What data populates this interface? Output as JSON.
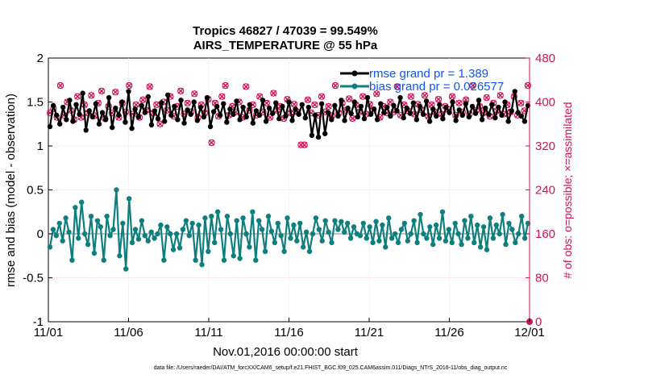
{
  "chart_data": {
    "type": "line",
    "title_line1": "Tropics 46827 / 47039 = 99.549%",
    "title_line2": "AIRS_TEMPERATURE @ 55 hPa",
    "xlabel": "Nov.01,2016 00:00:00 start",
    "ylabel_left": "rmse and bias (model - observation)",
    "ylabel_right": "# of obs: o=possible; ×=assimilated",
    "x_ticks": [
      "11/01",
      "11/06",
      "11/11",
      "11/16",
      "11/21",
      "11/26",
      "12/01"
    ],
    "x_range_days": [
      0,
      30
    ],
    "ylim_left": [
      -1,
      2
    ],
    "y_ticks_left": [
      "-1",
      "-0.5",
      "0",
      "0.5",
      "1",
      "1.5",
      "2"
    ],
    "ylim_right": [
      0,
      480
    ],
    "y_ticks_right": [
      "0",
      "80",
      "160",
      "240",
      "320",
      "400",
      "480"
    ],
    "grid": true,
    "legend_position": "top-right",
    "footnote": "data file: /Users/raeder/DAI/ATM_forcXX/CAM6_setup/f.e21.FHIST_BGC.f09_025.CAM6assim.011/Diags_NTrS_2016-11/obs_diag_output.nc",
    "colors": {
      "rmse": "#000000",
      "bias": "#0e7f7f",
      "obs": "#d01357",
      "legend_text": "#1155ee",
      "zero_line": "#aaaaaa"
    },
    "series": [
      {
        "name": "rmse grand pr = 1.389",
        "axis": "left",
        "values": [
          1.22,
          1.46,
          1.35,
          1.25,
          1.44,
          1.3,
          1.52,
          1.28,
          1.47,
          1.36,
          1.6,
          1.18,
          1.4,
          1.33,
          1.48,
          1.25,
          1.38,
          1.3,
          1.55,
          1.21,
          1.43,
          1.35,
          1.5,
          1.27,
          1.62,
          1.2,
          1.42,
          1.33,
          1.46,
          1.38,
          1.56,
          1.24,
          1.4,
          1.31,
          1.49,
          1.28,
          1.58,
          1.35,
          1.45,
          1.3,
          1.52,
          1.26,
          1.41,
          1.36,
          1.5,
          1.29,
          1.44,
          1.33,
          1.55,
          1.22,
          1.39,
          1.45,
          1.35,
          1.48,
          1.27,
          1.42,
          1.36,
          1.51,
          1.3,
          1.44,
          1.33,
          1.47,
          1.26,
          1.4,
          1.35,
          1.52,
          1.28,
          1.43,
          1.37,
          1.49,
          1.31,
          1.45,
          1.34,
          1.5,
          1.29,
          1.42,
          1.36,
          1.47,
          1.32,
          1.44,
          1.12,
          1.35,
          1.1,
          1.48,
          1.14,
          1.38,
          1.3,
          1.46,
          1.34,
          1.52,
          1.29,
          1.43,
          1.37,
          1.5,
          1.33,
          1.45,
          1.31,
          1.55,
          1.36,
          1.42,
          1.3,
          1.48,
          1.38,
          1.44,
          1.34,
          1.46,
          1.4,
          1.55,
          1.32,
          1.43,
          1.37,
          1.49,
          1.3,
          1.45,
          1.36,
          1.51,
          1.28,
          1.42,
          1.34,
          1.47,
          1.31,
          1.44,
          1.38,
          1.5,
          1.29,
          1.41,
          1.35,
          1.48,
          1.33,
          1.45,
          1.37,
          1.52,
          1.3,
          1.43,
          1.36,
          1.47,
          1.32,
          1.44,
          1.35,
          1.5,
          1.28,
          1.4,
          1.62,
          1.38,
          1.34,
          1.28,
          1.46
        ]
      },
      {
        "name": "bias grand pr = 0.026577",
        "axis": "left",
        "values": [
          -0.15,
          0.05,
          -0.02,
          0.12,
          -0.08,
          0.18,
          0.02,
          -0.3,
          0.3,
          -0.05,
          0.36,
          0.0,
          -0.12,
          0.2,
          -0.22,
          0.15,
          0.08,
          -0.3,
          0.2,
          -0.02,
          0.05,
          0.5,
          -0.25,
          0.12,
          -0.4,
          0.4,
          -0.1,
          0.05,
          -0.06,
          0.15,
          -0.02,
          -0.08,
          0.02,
          -0.05,
          0.0,
          0.1,
          -0.3,
          0.08,
          0.0,
          -0.18,
          0.0,
          -0.16,
          0.05,
          0.15,
          -0.02,
          0.12,
          -0.3,
          0.1,
          -0.35,
          0.18,
          -0.2,
          0.2,
          -0.1,
          0.25,
          0.05,
          -0.3,
          0.2,
          0.0,
          -0.25,
          0.15,
          -0.28,
          0.18,
          0.0,
          -0.15,
          0.25,
          -0.3,
          0.15,
          0.05,
          -0.2,
          0.2,
          0.03,
          -0.1,
          0.12,
          -0.02,
          -0.2,
          0.18,
          -0.05,
          0.1,
          -0.08,
          0.12,
          -0.15,
          0.02,
          -0.2,
          0.0,
          0.18,
          0.05,
          -0.08,
          0.15,
          0.02,
          -0.1,
          0.15,
          0.05,
          0.14,
          0.02,
          0.12,
          -0.05,
          0.08,
          0.0,
          -0.02,
          0.12,
          -0.05,
          0.08,
          -0.1,
          0.14,
          -0.08,
          0.1,
          -0.15,
          0.18,
          -0.05,
          0.0,
          -0.1,
          0.05,
          0.12,
          -0.08,
          0.0,
          0.15,
          -0.1,
          0.22,
          0.0,
          -0.05,
          0.08,
          -0.12,
          0.1,
          -0.05,
          0.25,
          -0.08,
          0.05,
          -0.1,
          0.12,
          0.0,
          -0.12,
          0.15,
          -0.05,
          0.2,
          -0.1,
          0.1,
          -0.15,
          0.08,
          -0.18,
          0.18,
          -0.05,
          0.1,
          0.0,
          0.22,
          -0.12,
          0.12,
          0.05,
          -0.1,
          0.0,
          0.2,
          -0.05,
          0.12
        ]
      },
      {
        "name": "# of obs possible",
        "axis": "right",
        "values": [
          380,
          388,
          372,
          430,
          376,
          400,
          385,
          368,
          410,
          372,
          395,
          380,
          412,
          375,
          398,
          420,
          370,
          392,
          380,
          418,
          372,
          398,
          382,
          430,
          378,
          395,
          372,
          404,
          385,
          428,
          380,
          395,
          360,
          400,
          385,
          410,
          374,
          392,
          420,
          378,
          398,
          382,
          415,
          372,
          395,
          380,
          405,
          326,
          398,
          374,
          410,
          430,
          376,
          392,
          382,
          400,
          372,
          428,
          385,
          395,
          376,
          410,
          382,
          398,
          372,
          416,
          385,
          392,
          370,
          405,
          380,
          396,
          382,
          322,
          322,
          404,
          380,
          395,
          376,
          410,
          382,
          392,
          375,
          430,
          380,
          398,
          385,
          406,
          370,
          395,
          382,
          410,
          378,
          396,
          385,
          415,
          372,
          392,
          380,
          400,
          382,
          428,
          376,
          395,
          384,
          410,
          378,
          396,
          386,
          412,
          374,
          395,
          382,
          405,
          378,
          392,
          386,
          410,
          376,
          398,
          382,
          404,
          378,
          430,
          385,
          392,
          380,
          408,
          374,
          398,
          384,
          412,
          378,
          395,
          382,
          410,
          376,
          398,
          384,
          430
        ]
      }
    ]
  }
}
